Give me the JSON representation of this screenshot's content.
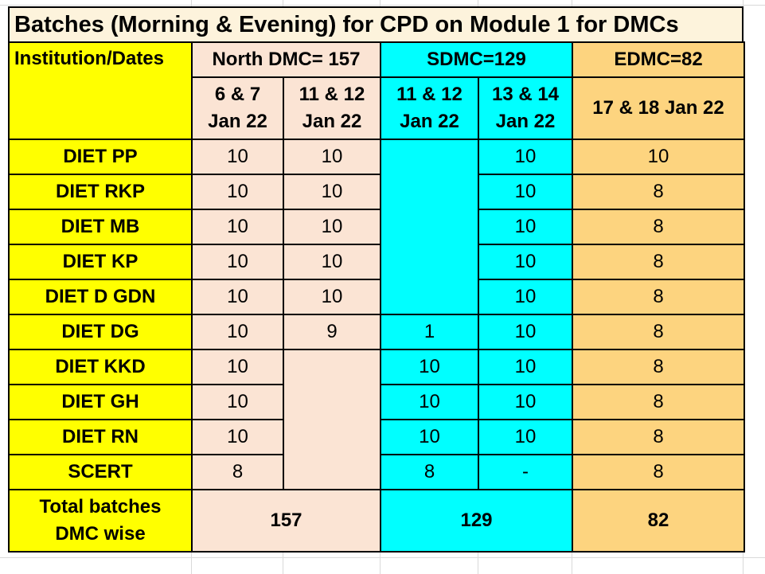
{
  "title": "Batches (Morning & Evening) for CPD on Module 1 for DMCs",
  "header": {
    "institution_dates": "Institution/Dates",
    "north": "North DMC= 157",
    "sdmc": "SDMC=129",
    "edmc": "EDMC=82"
  },
  "dates": {
    "d1": [
      "6 & 7",
      "Jan 22"
    ],
    "d2": [
      "11 & 12",
      "Jan 22"
    ],
    "d3": [
      "11 & 12",
      "Jan 22"
    ],
    "d4": [
      "13 & 14",
      "Jan 22"
    ],
    "d5": "17 & 18 Jan 22"
  },
  "rows": [
    {
      "name": "DIET PP",
      "c1": "10",
      "c2": "10",
      "c3": "",
      "c4": "10",
      "c5": "10"
    },
    {
      "name": "DIET RKP",
      "c1": "10",
      "c2": "10",
      "c3": "",
      "c4": "10",
      "c5": "8"
    },
    {
      "name": "DIET MB",
      "c1": "10",
      "c2": "10",
      "c3": "",
      "c4": "10",
      "c5": "8"
    },
    {
      "name": "DIET KP",
      "c1": "10",
      "c2": "10",
      "c3": "",
      "c4": "10",
      "c5": "8"
    },
    {
      "name": "DIET D GDN",
      "c1": "10",
      "c2": "10",
      "c3": "",
      "c4": "10",
      "c5": "8"
    },
    {
      "name": "DIET DG",
      "c1": "10",
      "c2": "9",
      "c3": "1",
      "c4": "10",
      "c5": "8"
    },
    {
      "name": "DIET KKD",
      "c1": "10",
      "c2": "",
      "c3": "10",
      "c4": "10",
      "c5": "8"
    },
    {
      "name": "DIET GH",
      "c1": "10",
      "c2": "",
      "c3": "10",
      "c4": "10",
      "c5": "8"
    },
    {
      "name": "DIET RN",
      "c1": "10",
      "c2": "",
      "c3": "10",
      "c4": "10",
      "c5": "8"
    },
    {
      "name": "SCERT",
      "c1": "8",
      "c2": "",
      "c3": "8",
      "c4": "-",
      "c5": "8"
    }
  ],
  "totals": {
    "label": [
      "Total batches",
      "DMC wise"
    ],
    "north": "157",
    "sdmc": "129",
    "edmc": "82"
  },
  "colors": {
    "yellow": "#ffff00",
    "peach": "#fbe4d4",
    "cyan": "#00ffff",
    "orange": "#fdd47f",
    "title_bg": "#fdf3dc"
  }
}
